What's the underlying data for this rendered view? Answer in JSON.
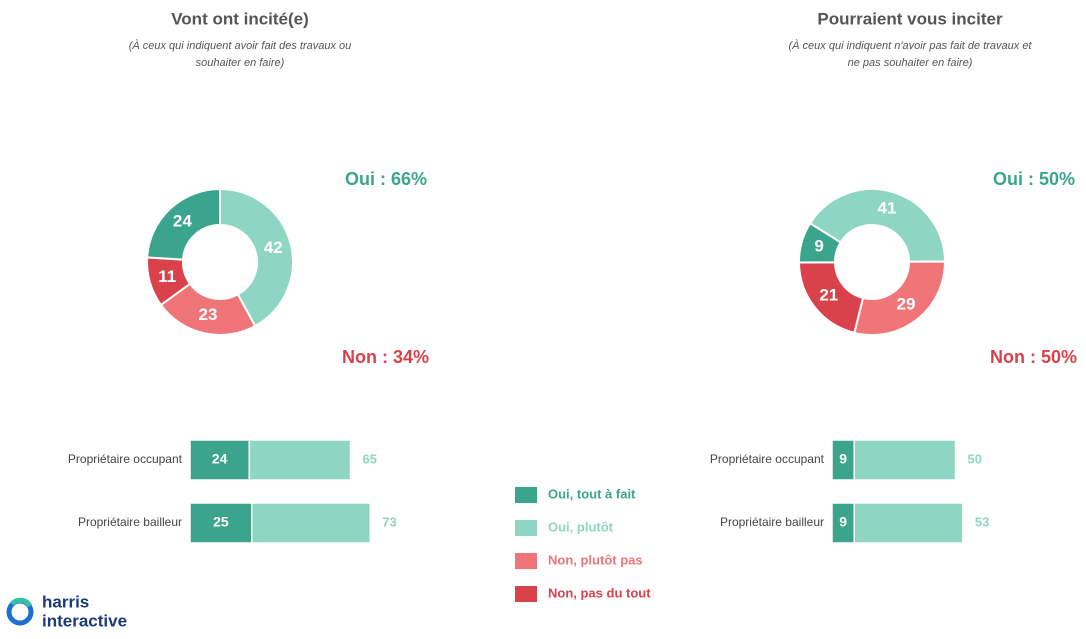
{
  "chart_data": [
    {
      "type": "donut",
      "title": "Vont ont incité(e)",
      "subtitle": [
        "(À ceux qui indiquent avoir fait des travaux ou",
        "souhaiter en faire)"
      ],
      "values": [
        24,
        42,
        23,
        11
      ],
      "annotations": [
        "Oui : 66%",
        "Non : 34%"
      ]
    },
    {
      "type": "stacked-barh",
      "categories": [
        "Propriétaire occupant",
        "Propriétaire bailleur"
      ],
      "series": [
        {
          "values": [
            24,
            25
          ]
        },
        {
          "values": [
            41,
            48
          ]
        }
      ],
      "totals": [
        65,
        73
      ]
    },
    {
      "type": "donut",
      "title": "Pourraient vous inciter",
      "subtitle": [
        "(À ceux qui indiquent n'avoir pas fait de travaux et",
        "ne pas souhaiter en faire)"
      ],
      "values": [
        9,
        41,
        29,
        21
      ],
      "annotations": [
        "Oui : 50%",
        "Non : 50%"
      ]
    },
    {
      "type": "stacked-barh",
      "categories": [
        "Propriétaire occupant",
        "Propriétaire bailleur"
      ],
      "series": [
        {
          "values": [
            9,
            9
          ]
        },
        {
          "values": [
            41,
            44
          ]
        }
      ],
      "totals": [
        50,
        53
      ]
    }
  ],
  "legend": {
    "labels": [
      "Oui, tout à fait",
      "Oui, plutôt",
      "Non, plutôt pas",
      "Non, pas du tout"
    ],
    "colors": [
      "#3aa58c",
      "#8fd5c3",
      "#f07578",
      "#d9414b"
    ]
  },
  "logo": [
    "harris",
    "interactive"
  ]
}
